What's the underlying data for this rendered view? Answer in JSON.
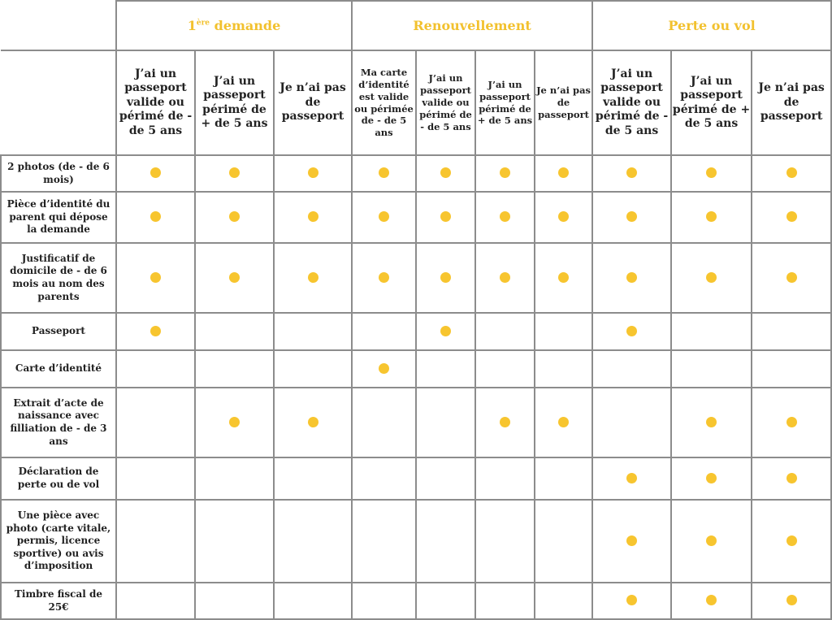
{
  "colors": {
    "accent": "#f2c12e",
    "dot": "#f7c52f",
    "border": "#8c8c8c"
  },
  "groups": [
    {
      "label": "demande",
      "sup": "ère",
      "prefix": "1",
      "span": 3
    },
    {
      "label": "Renouvellement",
      "span": 4
    },
    {
      "label": "Perte ou vol",
      "span": 3
    }
  ],
  "columns": [
    {
      "label": "J’ai un passeport valide ou périmé de - de 5 ans",
      "size": "large"
    },
    {
      "label": "J’ai un passeport périmé de + de 5 ans",
      "size": "large"
    },
    {
      "label": "Je n’ai pas de passeport",
      "size": "large"
    },
    {
      "label": "Ma carte d’identité est valide ou périmée de - de 5 ans",
      "size": "small"
    },
    {
      "label": "J’ai un passeport valide ou périmé de - de 5 ans",
      "size": "small"
    },
    {
      "label": "J’ai un passeport périmé de + de 5 ans",
      "size": "small"
    },
    {
      "label": "Je n’ai pas de passeport",
      "size": "small"
    },
    {
      "label": "J’ai un passeport valide ou périmé de - de 5 ans",
      "size": "large"
    },
    {
      "label": "J’ai un passeport périmé de + de 5 ans",
      "size": "large"
    },
    {
      "label": "Je n’ai pas de passeport",
      "size": "large"
    }
  ],
  "rows": [
    {
      "label": "2 photos (de - de 6 mois)",
      "checks": [
        1,
        1,
        1,
        1,
        1,
        1,
        1,
        1,
        1,
        1
      ]
    },
    {
      "label": "Pièce d’identité du parent qui dépose la demande",
      "checks": [
        1,
        1,
        1,
        1,
        1,
        1,
        1,
        1,
        1,
        1
      ]
    },
    {
      "label": "Justificatif de domicile de - de 6 mois au nom des parents",
      "checks": [
        1,
        1,
        1,
        1,
        1,
        1,
        1,
        1,
        1,
        1
      ]
    },
    {
      "label": "Passeport",
      "checks": [
        1,
        0,
        0,
        0,
        1,
        0,
        0,
        1,
        0,
        0
      ]
    },
    {
      "label": "Carte d’identité",
      "checks": [
        0,
        0,
        0,
        1,
        0,
        0,
        0,
        0,
        0,
        0
      ]
    },
    {
      "label": "Extrait d’acte de naissance avec filliation de - de 3 ans",
      "checks": [
        0,
        1,
        1,
        0,
        0,
        1,
        1,
        0,
        1,
        1
      ]
    },
    {
      "label": "Déclaration de perte ou de vol",
      "checks": [
        0,
        0,
        0,
        0,
        0,
        0,
        0,
        1,
        1,
        1
      ]
    },
    {
      "label": "Une pièce avec photo (carte vitale, permis, licence sportive) ou avis d’imposition",
      "checks": [
        0,
        0,
        0,
        0,
        0,
        0,
        0,
        1,
        1,
        1
      ]
    },
    {
      "label": "Timbre fiscal de 25€",
      "checks": [
        0,
        0,
        0,
        0,
        0,
        0,
        0,
        1,
        1,
        1
      ]
    }
  ]
}
